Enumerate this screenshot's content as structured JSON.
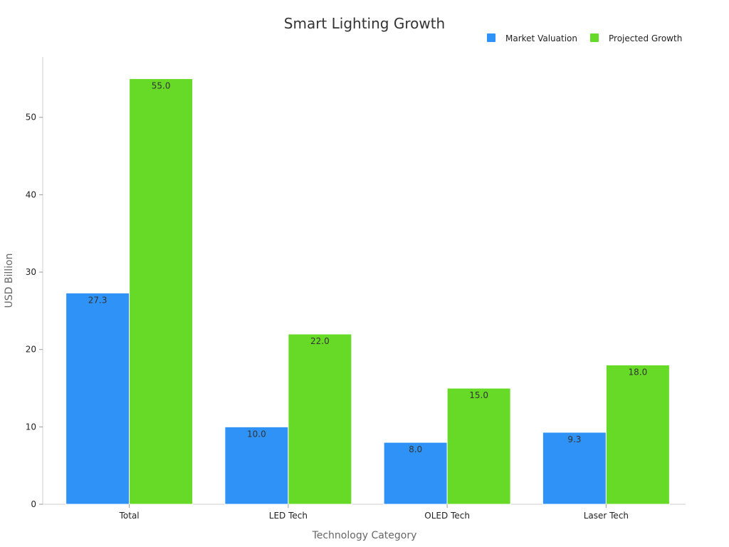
{
  "chart_data": {
    "type": "bar",
    "title": "Smart Lighting Growth",
    "xlabel": "Technology Category",
    "ylabel": "USD Billion",
    "categories": [
      "Total",
      "LED Tech",
      "OLED Tech",
      "Laser Tech"
    ],
    "series": [
      {
        "name": "Market Valuation",
        "color": "#2f92f6",
        "values": [
          27.3,
          10.0,
          8.0,
          9.3
        ],
        "labels": [
          "27.3",
          "10.0",
          "8.0",
          "9.3"
        ]
      },
      {
        "name": "Projected Growth",
        "color": "#66da26",
        "values": [
          55.0,
          22.0,
          15.0,
          18.0
        ],
        "labels": [
          "55.0",
          "22.0",
          "15.0",
          "18.0"
        ]
      }
    ],
    "ylim": [
      0,
      57.8
    ],
    "yticks": [
      0,
      10,
      20,
      30,
      40,
      50
    ],
    "ytick_labels": [
      "0",
      "10",
      "20",
      "30",
      "40",
      "50"
    ],
    "grid": false,
    "legend_position": "top-right"
  }
}
